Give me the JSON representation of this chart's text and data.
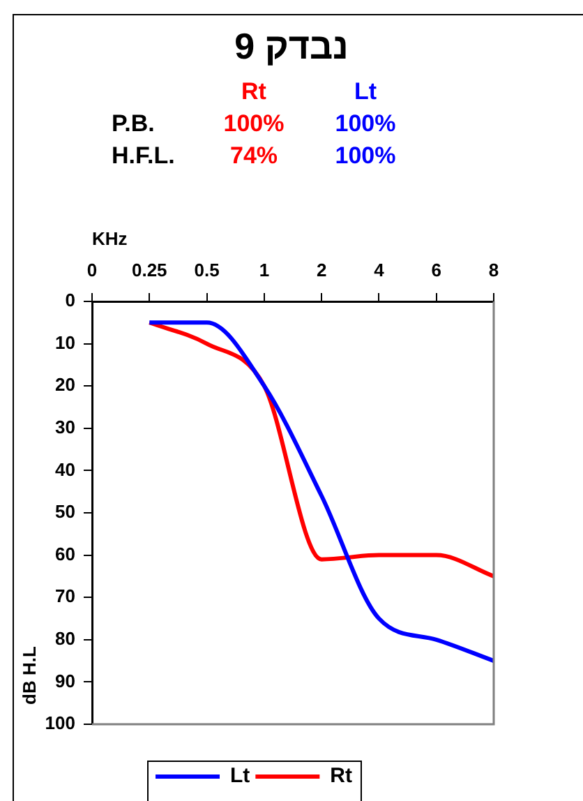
{
  "chart_data": {
    "type": "line",
    "title": "נבדק 9",
    "xlabel": "KHz",
    "ylabel": "dB H.L",
    "annotations": [
      "Rt",
      "Lt",
      "P.B.",
      "100%",
      "100%",
      "H.F.L.",
      "74%",
      "100%"
    ],
    "categories": [
      "0",
      "0.25",
      "0.5",
      "1",
      "2",
      "4",
      "6",
      "8"
    ],
    "ylim": [
      100,
      0
    ],
    "yticks": [
      0,
      10,
      20,
      30,
      40,
      50,
      60,
      70,
      80,
      90,
      100
    ],
    "grid": false,
    "legend": "bottom",
    "marker": "none",
    "line_style": "solid",
    "series": [
      {
        "name": "Lt",
        "color": "#0000ff",
        "values": [
          null,
          5,
          5,
          20,
          46,
          75,
          80,
          85
        ]
      },
      {
        "name": "Rt",
        "color": "#ff0000",
        "values": [
          null,
          5,
          10,
          20,
          61,
          60,
          60,
          65
        ]
      }
    ]
  }
}
